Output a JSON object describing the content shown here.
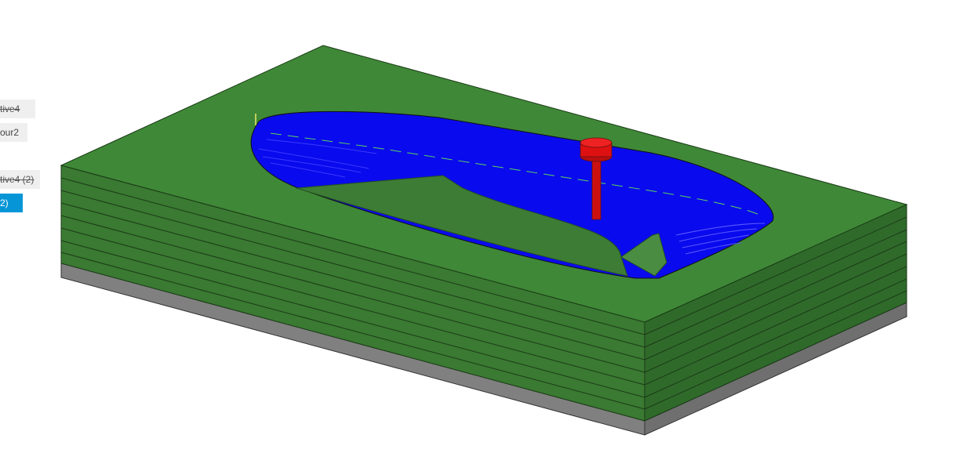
{
  "viewport": {
    "background": "#ffffff"
  },
  "operation_tags": [
    {
      "label": "tive4",
      "state": "suppressed"
    },
    {
      "label": "our2",
      "state": "normal"
    },
    {
      "label": "tive4 (2)",
      "state": "suppressed"
    },
    {
      "label": "2)",
      "state": "selected"
    }
  ],
  "model": {
    "stock_top_color": "#3f8837",
    "stock_front_color": "#3a7a32",
    "stock_side_color": "#2f6a2a",
    "base_color": "#7a7a7a",
    "toolpath_color": "#0000ff",
    "tool_color": "#dd1111",
    "tool_icon": "end-mill-tool-icon",
    "layer_count": 8
  }
}
